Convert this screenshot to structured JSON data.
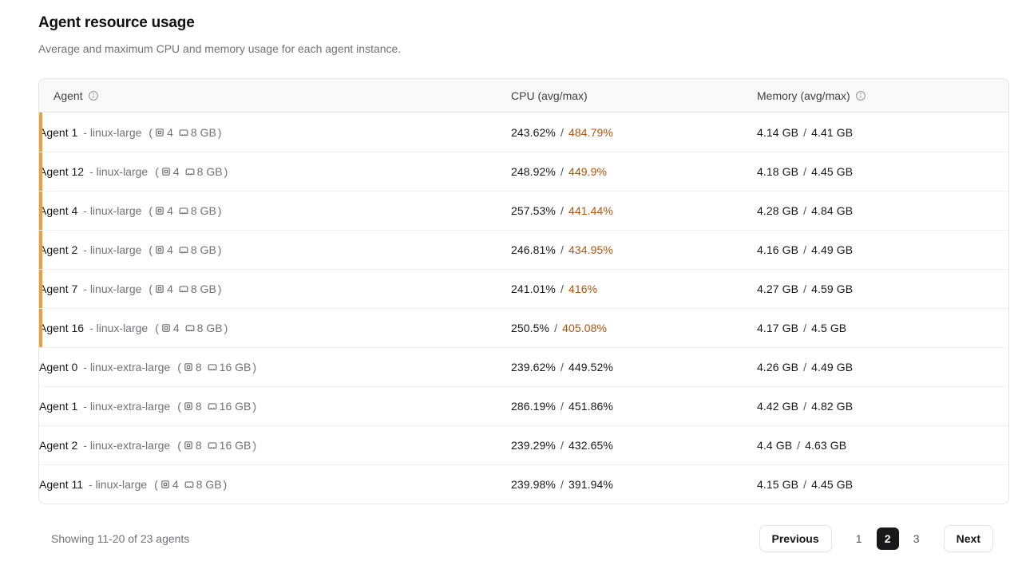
{
  "header": {
    "title": "Agent resource usage",
    "subtitle": "Average and maximum CPU and memory usage for each agent instance."
  },
  "table": {
    "columns": [
      {
        "label": "Agent",
        "has_info_icon": true
      },
      {
        "label": "CPU (avg/max)",
        "has_info_icon": false
      },
      {
        "label": "Memory (avg/max)",
        "has_info_icon": true
      }
    ],
    "format": {
      "separator": "-",
      "open_paren": "(",
      "close_paren": ")",
      "slash": "/"
    },
    "rows": [
      {
        "name": "Agent 1",
        "size": "linux-large",
        "cores": "4",
        "ram": "8 GB",
        "cpu_avg": "243.62%",
        "cpu_max": "484.79%",
        "cpu_alert": true,
        "mem_avg": "4.14 GB",
        "mem_max": "4.41 GB"
      },
      {
        "name": "Agent 12",
        "size": "linux-large",
        "cores": "4",
        "ram": "8 GB",
        "cpu_avg": "248.92%",
        "cpu_max": "449.9%",
        "cpu_alert": true,
        "mem_avg": "4.18 GB",
        "mem_max": "4.45 GB"
      },
      {
        "name": "Agent 4",
        "size": "linux-large",
        "cores": "4",
        "ram": "8 GB",
        "cpu_avg": "257.53%",
        "cpu_max": "441.44%",
        "cpu_alert": true,
        "mem_avg": "4.28 GB",
        "mem_max": "4.84 GB"
      },
      {
        "name": "Agent 2",
        "size": "linux-large",
        "cores": "4",
        "ram": "8 GB",
        "cpu_avg": "246.81%",
        "cpu_max": "434.95%",
        "cpu_alert": true,
        "mem_avg": "4.16 GB",
        "mem_max": "4.49 GB"
      },
      {
        "name": "Agent 7",
        "size": "linux-large",
        "cores": "4",
        "ram": "8 GB",
        "cpu_avg": "241.01%",
        "cpu_max": "416%",
        "cpu_alert": true,
        "mem_avg": "4.27 GB",
        "mem_max": "4.59 GB"
      },
      {
        "name": "Agent 16",
        "size": "linux-large",
        "cores": "4",
        "ram": "8 GB",
        "cpu_avg": "250.5%",
        "cpu_max": "405.08%",
        "cpu_alert": true,
        "mem_avg": "4.17 GB",
        "mem_max": "4.5 GB"
      },
      {
        "name": "Agent 0",
        "size": "linux-extra-large",
        "cores": "8",
        "ram": "16 GB",
        "cpu_avg": "239.62%",
        "cpu_max": "449.52%",
        "cpu_alert": false,
        "mem_avg": "4.26 GB",
        "mem_max": "4.49 GB"
      },
      {
        "name": "Agent 1",
        "size": "linux-extra-large",
        "cores": "8",
        "ram": "16 GB",
        "cpu_avg": "286.19%",
        "cpu_max": "451.86%",
        "cpu_alert": false,
        "mem_avg": "4.42 GB",
        "mem_max": "4.82 GB"
      },
      {
        "name": "Agent 2",
        "size": "linux-extra-large",
        "cores": "8",
        "ram": "16 GB",
        "cpu_avg": "239.29%",
        "cpu_max": "432.65%",
        "cpu_alert": false,
        "mem_avg": "4.4 GB",
        "mem_max": "4.63 GB"
      },
      {
        "name": "Agent 11",
        "size": "linux-large",
        "cores": "4",
        "ram": "8 GB",
        "cpu_avg": "239.98%",
        "cpu_max": "391.94%",
        "cpu_alert": false,
        "mem_avg": "4.15 GB",
        "mem_max": "4.45 GB"
      }
    ]
  },
  "footer": {
    "summary": "Showing 11-20 of 23 agents",
    "pagination": {
      "previous_label": "Previous",
      "pages": [
        "1",
        "2",
        "3"
      ],
      "active_page": "2",
      "next_label": "Next"
    }
  },
  "colors": {
    "alert_bar": "#e9a23b",
    "alert_text": "#b45309",
    "active_page_bg": "#18181b",
    "header_bg": "#f9f9fa",
    "border": "#e4e4e7"
  }
}
